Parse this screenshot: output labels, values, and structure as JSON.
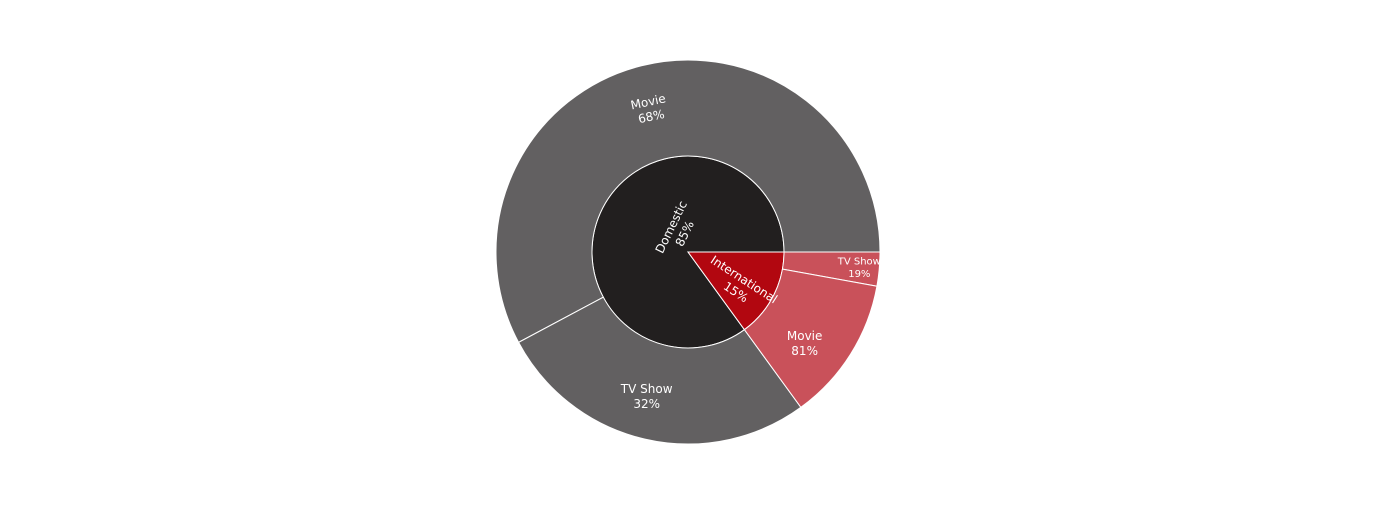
{
  "chart_data": {
    "type": "sunburst",
    "title": "",
    "colors": {
      "Domestic": "#221f1f",
      "International": "#b20710",
      "Domestic.children": "#626061",
      "International.children": "#c9515a"
    },
    "hierarchy": [
      {
        "name": "Domestic",
        "percent": 85,
        "children": [
          {
            "name": "Movie",
            "percent": 68
          },
          {
            "name": "TV Show",
            "percent": 32
          }
        ]
      },
      {
        "name": "International",
        "percent": 15,
        "children": [
          {
            "name": "Movie",
            "percent": 81
          },
          {
            "name": "TV Show",
            "percent": 19
          }
        ]
      }
    ]
  }
}
